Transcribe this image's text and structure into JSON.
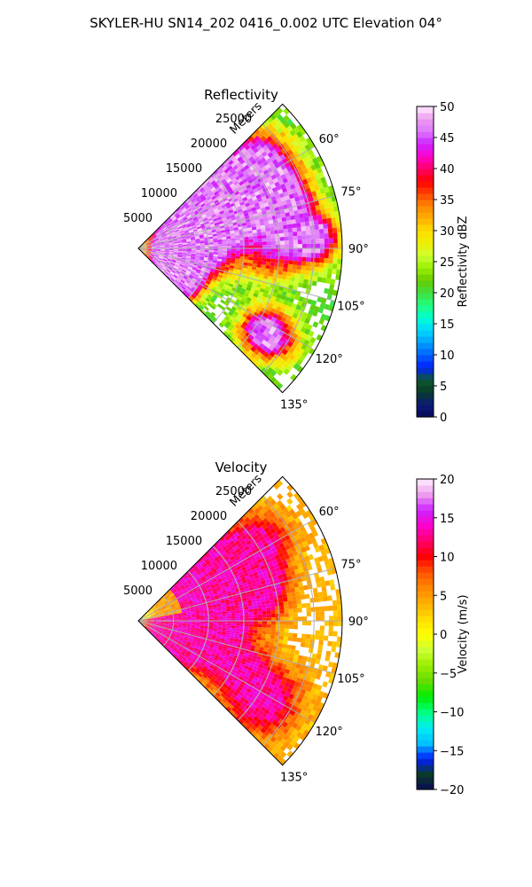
{
  "figure": {
    "title": "SKYLER-HU  SN14_202  0416_0.002 UTC Elevation 04°"
  },
  "chart_data": [
    {
      "type": "heatmap",
      "subtype": "radar-ppi-sector",
      "title": "Reflectivity",
      "radial_axis_label": "Meters",
      "radial_ticks": [
        5000,
        10000,
        15000,
        20000,
        25000
      ],
      "radial_tick_labels": [
        "5000",
        "10000",
        "15000",
        "20000",
        "25000"
      ],
      "rmax": 29000,
      "azimuth_range_deg": [
        45,
        135
      ],
      "azimuth_ticks": [
        60,
        75,
        90,
        105,
        120,
        135
      ],
      "azimuth_tick_labels": [
        "60°",
        "75°",
        "90°",
        "105°",
        "120°",
        "135°"
      ],
      "grid": true,
      "colorbar": {
        "label": "Reflectivity dBZ",
        "vmin": 0,
        "vmax": 50,
        "ticks": [
          0,
          5,
          10,
          15,
          20,
          25,
          30,
          35,
          40,
          45,
          50
        ],
        "tick_labels": [
          "0",
          "5",
          "10",
          "15",
          "20",
          "25",
          "30",
          "35",
          "40",
          "45",
          "50"
        ],
        "stops": [
          [
            0,
            "#0a0a55"
          ],
          [
            0.04,
            "#0a1a7a"
          ],
          [
            0.08,
            "#0a3a2a"
          ],
          [
            0.12,
            "#0d5a2a"
          ],
          [
            0.16,
            "#0020ff"
          ],
          [
            0.2,
            "#0060ff"
          ],
          [
            0.24,
            "#00a0ff"
          ],
          [
            0.28,
            "#00d8ff"
          ],
          [
            0.32,
            "#00ffd0"
          ],
          [
            0.36,
            "#20ff80"
          ],
          [
            0.4,
            "#40e040"
          ],
          [
            0.44,
            "#66cc00"
          ],
          [
            0.48,
            "#99ee00"
          ],
          [
            0.52,
            "#ccff33"
          ],
          [
            0.56,
            "#eeee00"
          ],
          [
            0.6,
            "#ffdd00"
          ],
          [
            0.64,
            "#ffb000"
          ],
          [
            0.68,
            "#ff8800"
          ],
          [
            0.72,
            "#ff4400"
          ],
          [
            0.76,
            "#ff0000"
          ],
          [
            0.8,
            "#ff0066"
          ],
          [
            0.84,
            "#ff00cc"
          ],
          [
            0.88,
            "#cc22ff"
          ],
          [
            0.92,
            "#dd77ff"
          ],
          [
            0.96,
            "#ee99ee"
          ],
          [
            1,
            "#ffeeff"
          ]
        ]
      }
    },
    {
      "type": "heatmap",
      "subtype": "radar-ppi-sector",
      "title": "Velocity",
      "radial_axis_label": "Meters",
      "radial_ticks": [
        5000,
        10000,
        15000,
        20000,
        25000
      ],
      "radial_tick_labels": [
        "5000",
        "10000",
        "15000",
        "20000",
        "25000"
      ],
      "rmax": 29000,
      "azimuth_range_deg": [
        45,
        135
      ],
      "azimuth_ticks": [
        60,
        75,
        90,
        105,
        120,
        135
      ],
      "azimuth_tick_labels": [
        "60°",
        "75°",
        "90°",
        "105°",
        "120°",
        "135°"
      ],
      "grid": true,
      "colorbar": {
        "label": "Velocity (m/s)",
        "vmin": -20,
        "vmax": 20,
        "ticks": [
          -20,
          -15,
          -10,
          -5,
          0,
          5,
          10,
          15,
          20
        ],
        "tick_labels": [
          "−20",
          "−15",
          "−10",
          "−5",
          "0",
          "5",
          "10",
          "15",
          "20"
        ],
        "stops": [
          [
            0,
            "#0a0a55"
          ],
          [
            0.05,
            "#0a3a2a"
          ],
          [
            0.1,
            "#0020ff"
          ],
          [
            0.15,
            "#00c0ff"
          ],
          [
            0.2,
            "#00f0f0"
          ],
          [
            0.25,
            "#00ff80"
          ],
          [
            0.3,
            "#00ee00"
          ],
          [
            0.35,
            "#66dd00"
          ],
          [
            0.4,
            "#99ee00"
          ],
          [
            0.45,
            "#ccff33"
          ],
          [
            0.5,
            "#ffff00"
          ],
          [
            0.55,
            "#ffdd00"
          ],
          [
            0.6,
            "#ffb000"
          ],
          [
            0.65,
            "#ff8800"
          ],
          [
            0.7,
            "#ff5500"
          ],
          [
            0.75,
            "#ff0000"
          ],
          [
            0.8,
            "#ff0066"
          ],
          [
            0.85,
            "#ff00cc"
          ],
          [
            0.9,
            "#cc22ff"
          ],
          [
            0.95,
            "#ee99ee"
          ],
          [
            1,
            "#ffeeff"
          ]
        ]
      }
    }
  ]
}
